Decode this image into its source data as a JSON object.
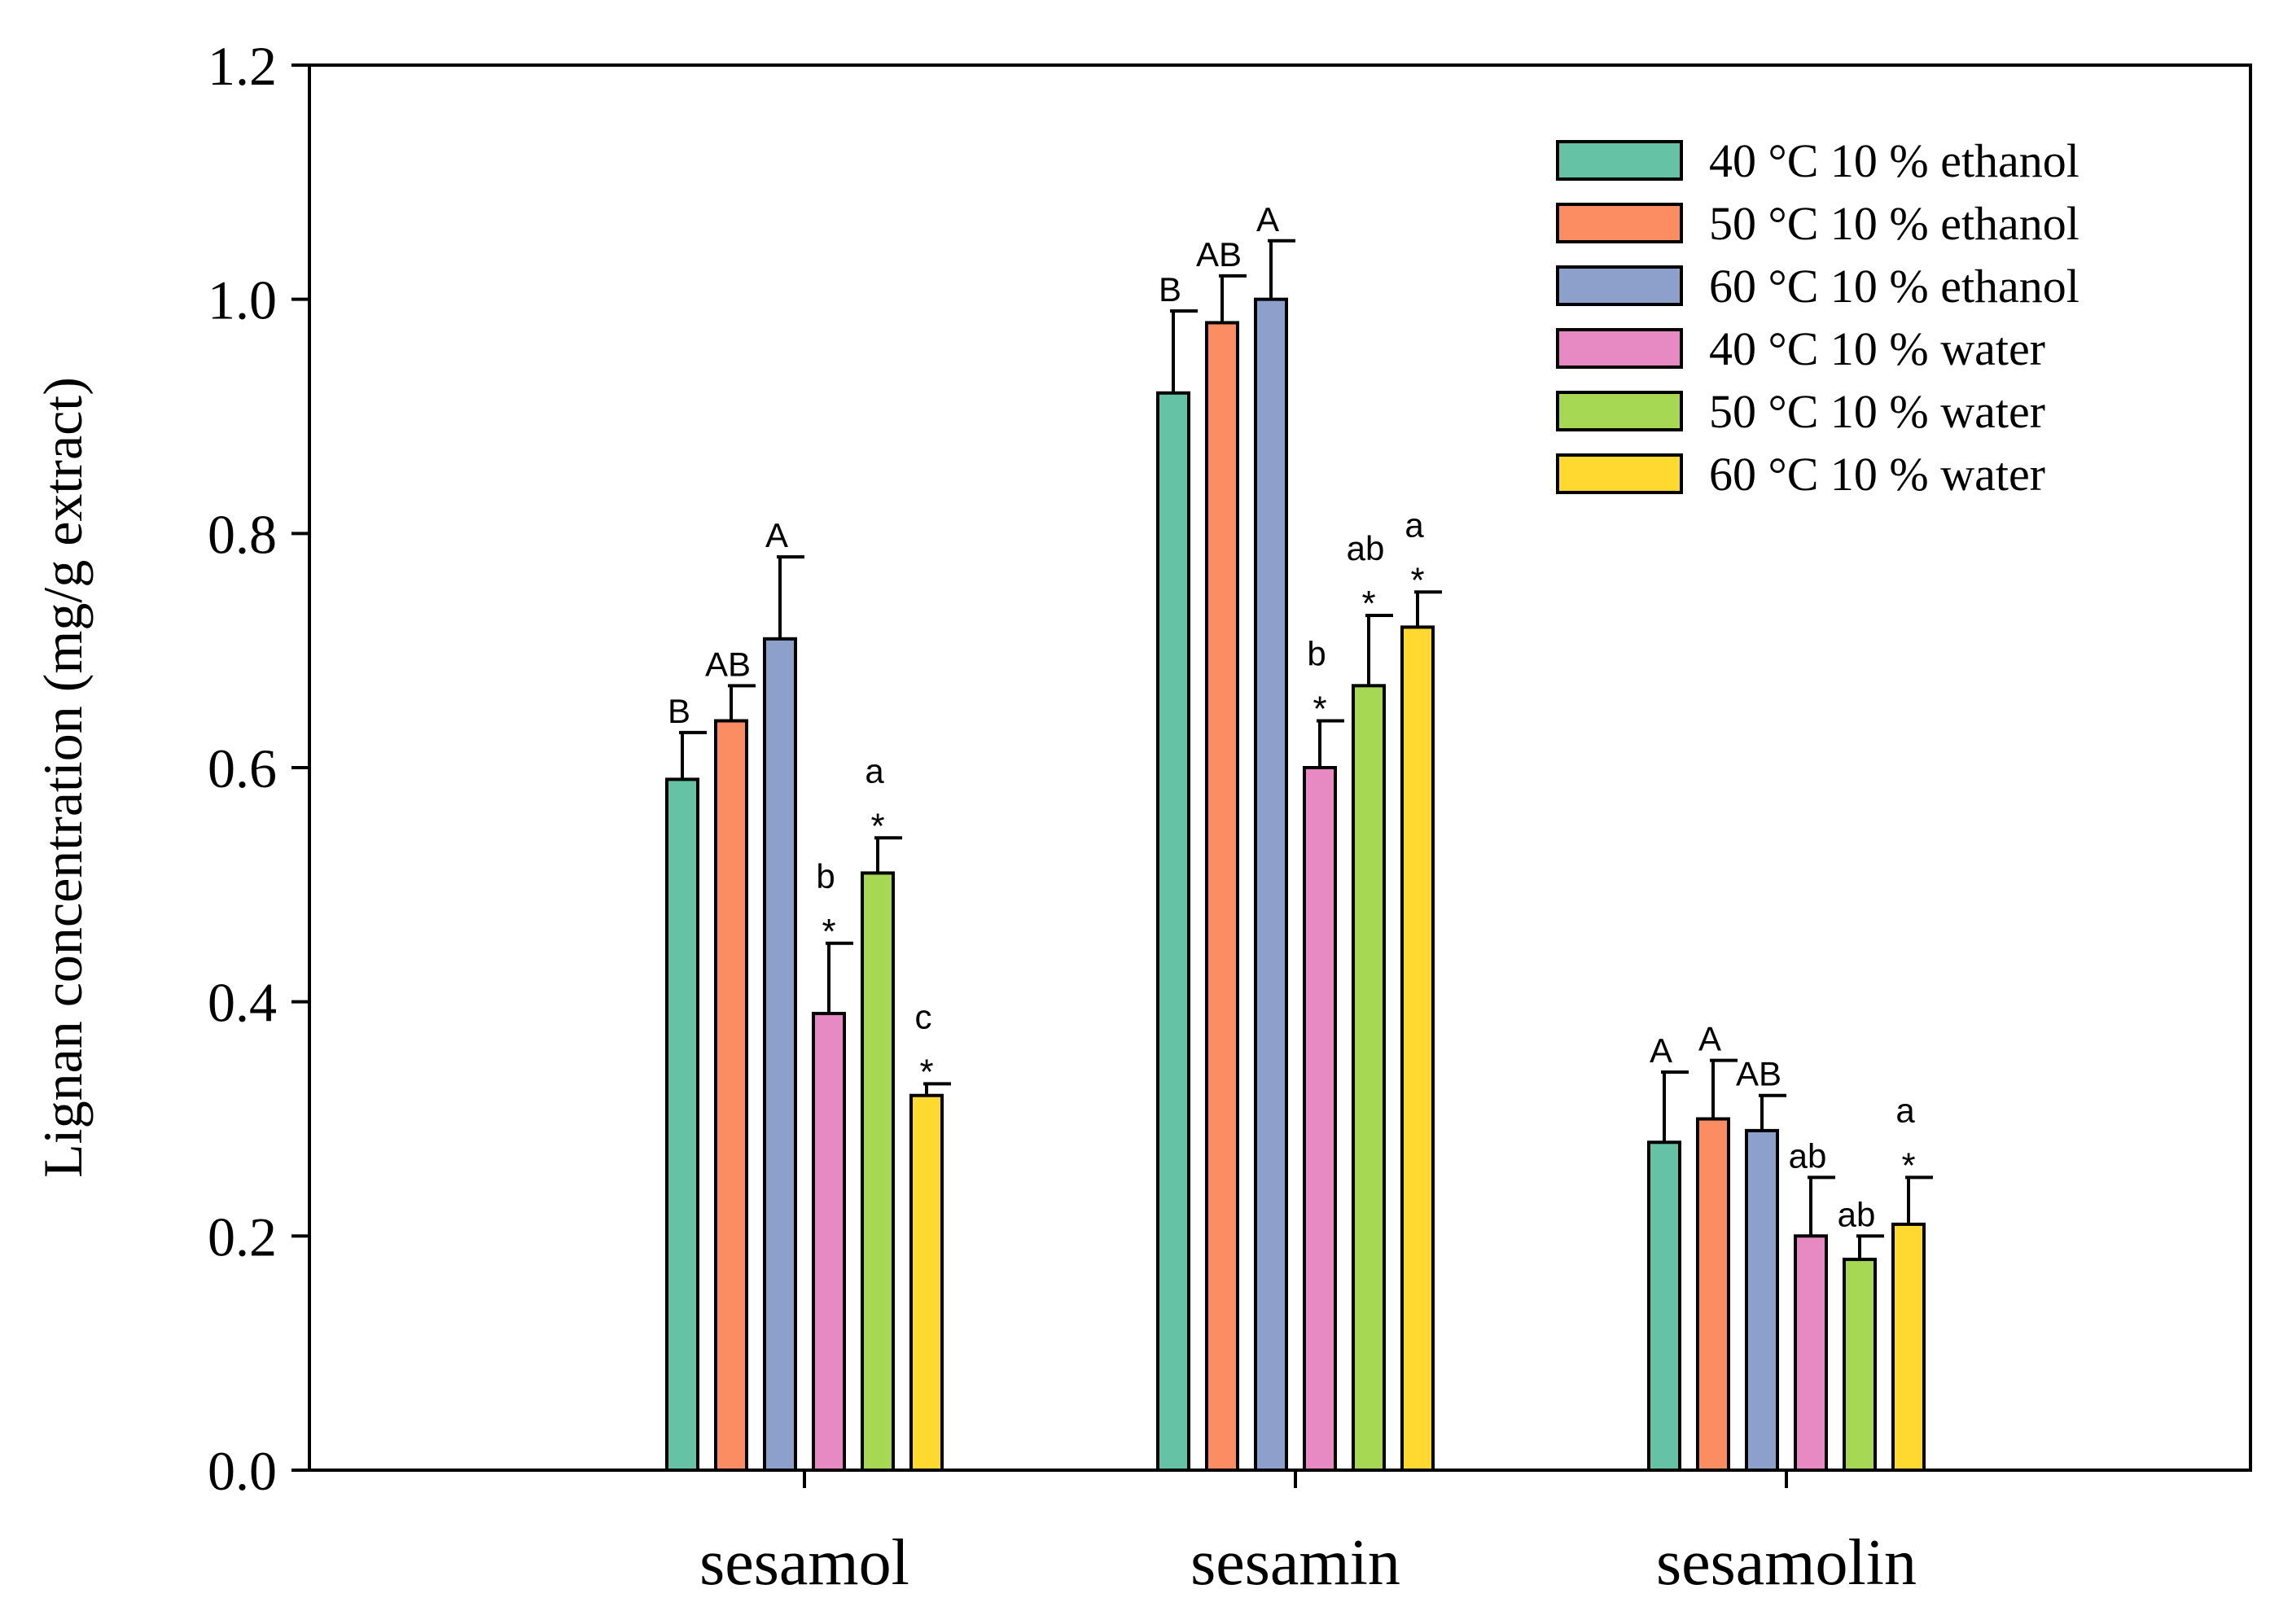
{
  "chart_data": {
    "type": "bar",
    "title": "",
    "xlabel": "",
    "ylabel": "Lignan concentration (mg/g extract)",
    "ylim": [
      0,
      1.2
    ],
    "yticks": [
      "0.0",
      "0.2",
      "0.4",
      "0.6",
      "0.8",
      "1.0",
      "1.2"
    ],
    "categories": [
      "sesamol",
      "sesamin",
      "sesamolin"
    ],
    "legend_position": "top-right",
    "series": [
      {
        "name": "40 °C  10 % ethanol",
        "color": "#66c2a5",
        "values": [
          0.59,
          0.92,
          0.28
        ],
        "errors": [
          0.04,
          0.07,
          0.06
        ],
        "stars": [
          "",
          "",
          ""
        ],
        "letters": [
          "B",
          "B",
          "A"
        ]
      },
      {
        "name": "50 °C 10 % ethanol",
        "color": "#fc8d62",
        "values": [
          0.64,
          0.98,
          0.3
        ],
        "errors": [
          0.03,
          0.04,
          0.05
        ],
        "stars": [
          "",
          "",
          ""
        ],
        "letters": [
          "AB",
          "AB",
          "A"
        ]
      },
      {
        "name": "60 °C 10 % ethanol",
        "color": "#8da0cb",
        "values": [
          0.71,
          1.0,
          0.29
        ],
        "errors": [
          0.07,
          0.05,
          0.03
        ],
        "stars": [
          "",
          "",
          ""
        ],
        "letters": [
          "A",
          "A",
          "AB"
        ]
      },
      {
        "name": "40 °C 10 % water",
        "color": "#e78ac3",
        "values": [
          0.39,
          0.6,
          0.2
        ],
        "errors": [
          0.06,
          0.04,
          0.05
        ],
        "stars": [
          "*",
          "*",
          ""
        ],
        "letters": [
          "b",
          "b",
          "ab"
        ]
      },
      {
        "name": "50 °C 10 % water",
        "color": "#a6d854",
        "values": [
          0.51,
          0.67,
          0.18
        ],
        "errors": [
          0.03,
          0.06,
          0.02
        ],
        "stars": [
          "*",
          "*",
          ""
        ],
        "letters": [
          "a",
          "ab",
          "ab"
        ]
      },
      {
        "name": "60 °C 10 % water",
        "color": "#ffd92f",
        "values": [
          0.32,
          0.72,
          0.21
        ],
        "errors": [
          0.01,
          0.03,
          0.04
        ],
        "stars": [
          "*",
          "*",
          "*"
        ],
        "letters": [
          "c",
          "a",
          "a"
        ]
      }
    ]
  }
}
